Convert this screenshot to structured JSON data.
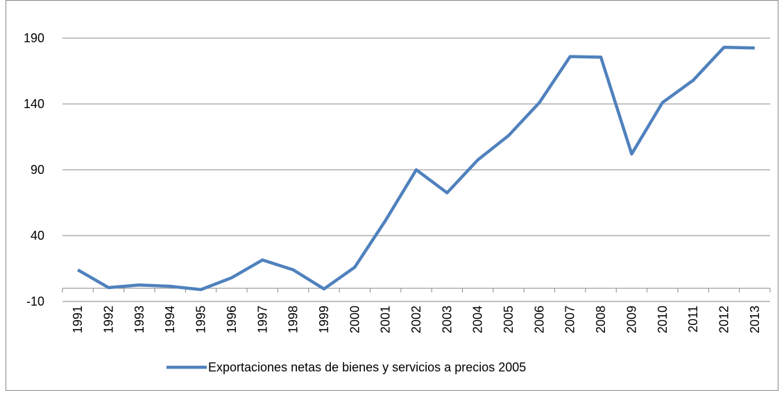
{
  "chart_data": {
    "type": "line",
    "categories": [
      "1991",
      "1992",
      "1993",
      "1994",
      "1995",
      "1996",
      "1997",
      "1998",
      "1999",
      "2000",
      "2001",
      "2002",
      "2003",
      "2004",
      "2005",
      "2006",
      "2007",
      "2008",
      "2009",
      "2010",
      "2011",
      "2012",
      "2013"
    ],
    "series": [
      {
        "name": "Exportaciones netas de bienes y servicios a precios 2005",
        "color": "#4f81bd",
        "values": [
          14,
          0.5,
          2.5,
          1.5,
          -1,
          8,
          21.5,
          14,
          -0.5,
          16,
          51.5,
          90,
          72.5,
          97.5,
          116,
          141,
          176,
          175.5,
          102,
          141,
          158,
          183,
          182.5
        ]
      }
    ],
    "ylim": [
      -10,
      190
    ],
    "yticks": [
      -10,
      40,
      90,
      140,
      190
    ],
    "grid": true,
    "legend": "bottom"
  }
}
